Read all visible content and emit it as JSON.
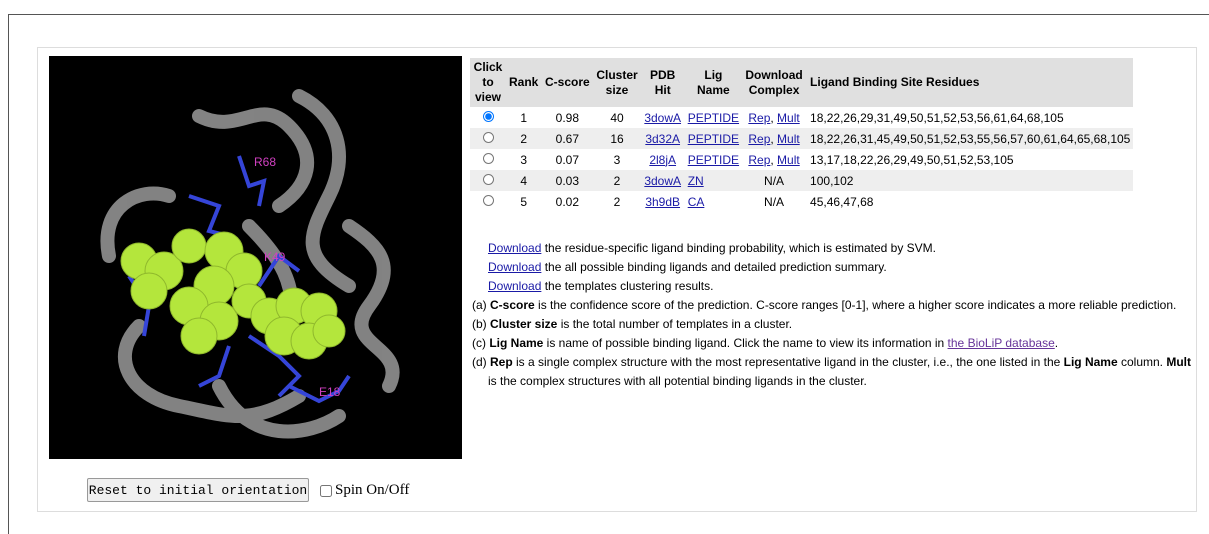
{
  "viewer": {
    "labels": [
      "R68",
      "K49",
      "E18"
    ]
  },
  "controls": {
    "reset_button": "Reset to initial orientation",
    "spin_label": "Spin On/Off"
  },
  "table": {
    "headers": [
      "Click to view",
      "Rank",
      "C-score",
      "Cluster size",
      "PDB Hit",
      "Lig Name",
      "Download Complex",
      "Ligand Binding Site Residues"
    ],
    "selected_row": 0,
    "rows": [
      {
        "rank": "1",
        "cscore": "0.98",
        "cluster_size": "40",
        "pdb_hit": "3dowA",
        "lig_name": "PEPTIDE",
        "download": [
          {
            "text": "Rep",
            "style": "link"
          },
          {
            "text": ", "
          },
          {
            "text": "Mult",
            "style": "link"
          }
        ],
        "residues": "18,22,26,29,31,49,50,51,52,53,56,61,64,68,105"
      },
      {
        "rank": "2",
        "cscore": "0.67",
        "cluster_size": "16",
        "pdb_hit": "3d32A",
        "lig_name": "PEPTIDE",
        "download": [
          {
            "text": "Rep",
            "style": "link"
          },
          {
            "text": ", "
          },
          {
            "text": "Mult",
            "style": "link"
          }
        ],
        "residues": "18,22,26,31,45,49,50,51,52,53,55,56,57,60,61,64,65,68,105"
      },
      {
        "rank": "3",
        "cscore": "0.07",
        "cluster_size": "3",
        "pdb_hit": "2l8jA",
        "lig_name": "PEPTIDE",
        "download": [
          {
            "text": "Rep",
            "style": "link"
          },
          {
            "text": ", "
          },
          {
            "text": "Mult",
            "style": "link"
          }
        ],
        "residues": "13,17,18,22,26,29,49,50,51,52,53,105"
      },
      {
        "rank": "4",
        "cscore": "0.03",
        "cluster_size": "2",
        "pdb_hit": "3dowA",
        "lig_name": "ZN",
        "download": [
          {
            "text": "N/A"
          }
        ],
        "residues": "100,102"
      },
      {
        "rank": "5",
        "cscore": "0.02",
        "cluster_size": "2",
        "pdb_hit": "3h9dB",
        "lig_name": "CA",
        "download": [
          {
            "text": "N/A"
          }
        ],
        "residues": "45,46,47,68"
      }
    ]
  },
  "downloads": [
    [
      {
        "text": "Download",
        "style": "link"
      },
      {
        "text": " the residue-specific ligand binding probability, which is estimated by SVM."
      }
    ],
    [
      {
        "text": "Download",
        "style": "link"
      },
      {
        "text": " the all possible binding ligands and detailed prediction summary."
      }
    ],
    [
      {
        "text": "Download",
        "style": "link"
      },
      {
        "text": " the templates clustering results."
      }
    ]
  ],
  "notes": [
    [
      {
        "text": "(a) "
      },
      {
        "text": "C-score",
        "style": "bold"
      },
      {
        "text": " is the confidence score of the prediction. C-score ranges [0-1], where a higher score indicates a more reliable prediction."
      }
    ],
    [
      {
        "text": "(b) "
      },
      {
        "text": "Cluster size",
        "style": "bold"
      },
      {
        "text": " is the total number of templates in a cluster."
      }
    ],
    [
      {
        "text": "(c) "
      },
      {
        "text": "Lig Name",
        "style": "bold"
      },
      {
        "text": " is name of possible binding ligand. Click the name to view its information in "
      },
      {
        "text": "the BioLiP database",
        "style": "visited"
      },
      {
        "text": "."
      }
    ],
    [
      {
        "text": "(d) "
      },
      {
        "text": "Rep",
        "style": "bold"
      },
      {
        "text": " is a single complex structure with the most representative ligand in the cluster, i.e., the one listed in the "
      },
      {
        "text": "Lig Name",
        "style": "bold"
      },
      {
        "text": " column. "
      },
      {
        "text": "Mult",
        "style": "bold"
      },
      {
        "text": " is the complex structures with all potential binding ligands in the cluster."
      }
    ]
  ]
}
